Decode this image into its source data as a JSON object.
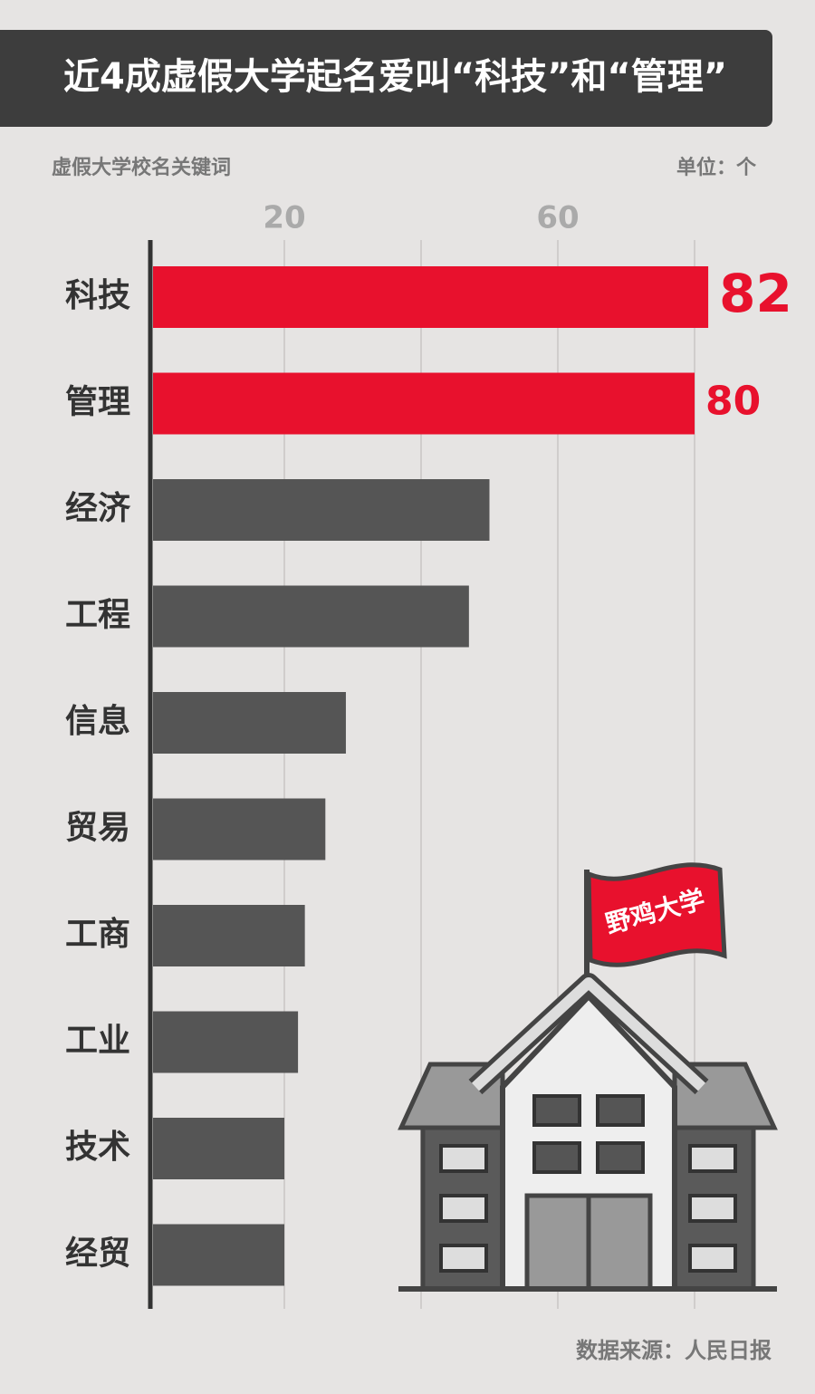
{
  "chart_data": {
    "type": "bar",
    "orientation": "horizontal",
    "title": "近4成虚假大学起名爱叫“科技”和“管理”",
    "subtitle": "虚假大学校名关键词",
    "unit": "单位：个",
    "source": "数据来源：人民日报",
    "illustration_label": "野鸡大学",
    "categories": [
      "科技",
      "管理",
      "经济",
      "工程",
      "信息",
      "贸易",
      "工商",
      "工业",
      "技术",
      "经贸"
    ],
    "values": [
      82,
      80,
      50,
      47,
      29,
      26,
      23,
      22,
      20,
      20
    ],
    "value_labels": [
      "82",
      "80",
      null,
      null,
      null,
      null,
      null,
      null,
      null,
      null
    ],
    "colors": [
      "#e8112d",
      "#e8112d",
      "#555555",
      "#555555",
      "#555555",
      "#555555",
      "#555555",
      "#555555",
      "#555555",
      "#555555"
    ],
    "xlim": [
      0,
      90
    ],
    "xticks": [
      20,
      {
        "value": 40,
        "label": null
      },
      60,
      {
        "value": 80,
        "label": null
      }
    ],
    "grid": true
  }
}
